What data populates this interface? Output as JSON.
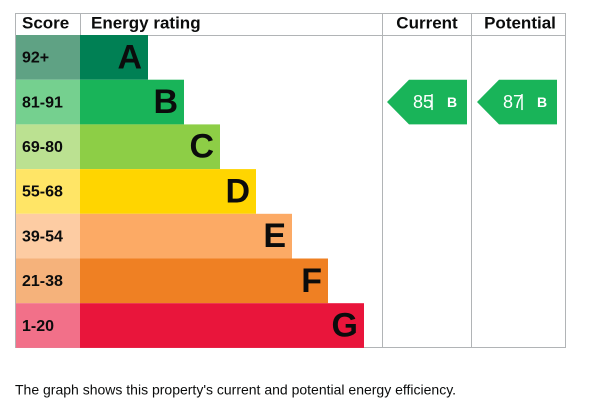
{
  "header": {
    "score": "Score",
    "energy_rating": "Energy rating",
    "current": "Current",
    "potential": "Potential"
  },
  "bands": [
    {
      "score": "92+",
      "letter": "A",
      "color": "#008054",
      "score_color": "#5fa284"
    },
    {
      "score": "81-91",
      "letter": "B",
      "color": "#19b459",
      "score_color": "#75d08f"
    },
    {
      "score": "69-80",
      "letter": "C",
      "color": "#8dce46",
      "score_color": "#bbe191"
    },
    {
      "score": "55-68",
      "letter": "D",
      "color": "#ffd500",
      "score_color": "#ffe566"
    },
    {
      "score": "39-54",
      "letter": "E",
      "color": "#fcaa65",
      "score_color": "#fdcca3"
    },
    {
      "score": "21-38",
      "letter": "F",
      "color": "#ef8023",
      "score_color": "#f5b27b"
    },
    {
      "score": "1-20",
      "letter": "G",
      "color": "#e9153b",
      "score_color": "#f27089"
    }
  ],
  "current": {
    "score": 85,
    "letter": "B"
  },
  "potential": {
    "score": 87,
    "letter": "B"
  },
  "footer": "The graph shows this property's current and potential energy efficiency."
}
